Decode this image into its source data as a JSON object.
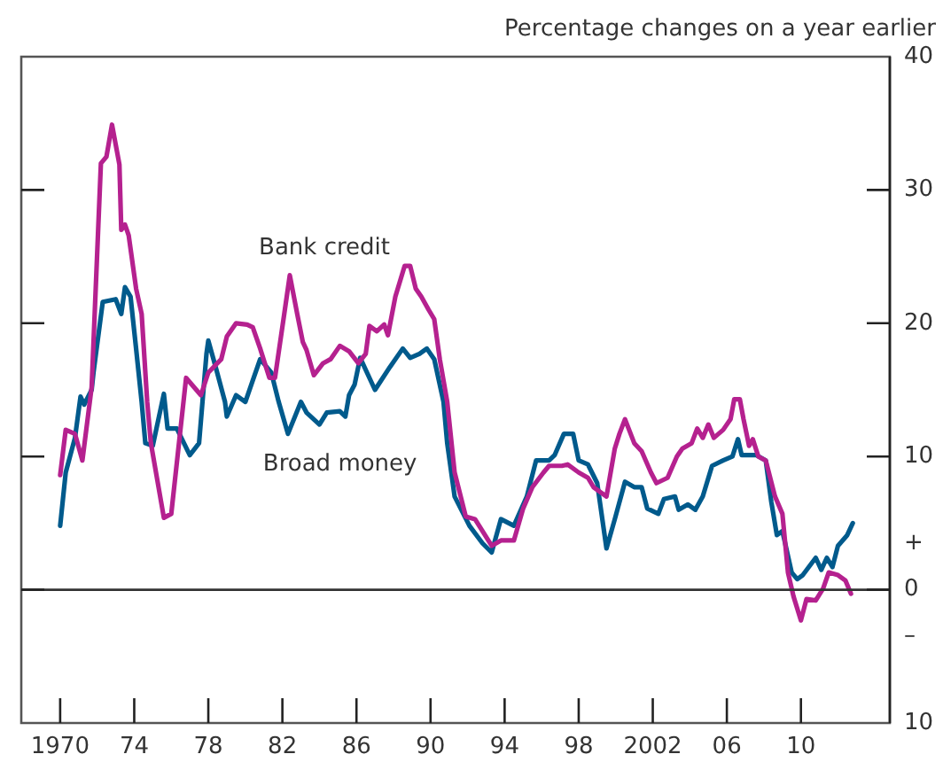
{
  "chart_data": {
    "type": "line",
    "ylabel": "Percentage changes on a year earlier",
    "xlim": [
      1967.9,
      2014.8
    ],
    "ylim": [
      -10,
      40
    ],
    "xticks": [
      {
        "value": 1970,
        "label": "1970"
      },
      {
        "value": 1974,
        "label": "74"
      },
      {
        "value": 1978,
        "label": "78"
      },
      {
        "value": 1982,
        "label": "82"
      },
      {
        "value": 1986,
        "label": "86"
      },
      {
        "value": 1990,
        "label": "90"
      },
      {
        "value": 1994,
        "label": "94"
      },
      {
        "value": 1998,
        "label": "98"
      },
      {
        "value": 2002,
        "label": "2002"
      },
      {
        "value": 2006,
        "label": "06"
      },
      {
        "value": 2010,
        "label": "10"
      }
    ],
    "yticks": [
      40,
      30,
      20,
      10,
      {
        "value": 3.5,
        "label": "+"
      },
      0,
      {
        "value": -3.5,
        "label": "–"
      },
      {
        "value": -10,
        "label": "10"
      }
    ],
    "ref_lines": [
      {
        "axis": "y",
        "value": 0,
        "color": "#333333"
      }
    ],
    "grid": false,
    "legend": false,
    "marker": "none",
    "line_style": "solid",
    "series": [
      {
        "name": "Bank credit",
        "color": "#b5218f",
        "x": [
          1970.0,
          1970.3,
          1970.8,
          1971.2,
          1971.7,
          1972.2,
          1972.5,
          1972.8,
          1973.2,
          1973.3,
          1973.5,
          1973.7,
          1974.1,
          1974.4,
          1974.7,
          1974.9,
          1975.6,
          1976.0,
          1976.8,
          1977.6,
          1978.0,
          1978.7,
          1979.0,
          1979.5,
          1980.1,
          1980.4,
          1980.8,
          1981.3,
          1981.6,
          1982.1,
          1982.4,
          1982.8,
          1983.1,
          1983.3,
          1983.7,
          1984.2,
          1984.6,
          1985.1,
          1985.6,
          1986.1,
          1986.5,
          1986.7,
          1987.1,
          1987.5,
          1987.7,
          1988.1,
          1988.6,
          1988.9,
          1989.2,
          1989.5,
          1989.9,
          1990.2,
          1990.5,
          1990.9,
          1991.3,
          1991.9,
          1992.4,
          1993.3,
          1993.8,
          1994.5,
          1995.0,
          1995.5,
          1996.1,
          1996.4,
          1997.1,
          1997.4,
          1998.0,
          1998.5,
          1998.8,
          1999.5,
          1999.95,
          2000.2,
          2000.5,
          2001.0,
          2001.4,
          2001.9,
          2002.2,
          2002.8,
          2003.3,
          2003.6,
          2004.1,
          2004.4,
          2004.7,
          2005.0,
          2005.3,
          2005.8,
          2006.2,
          2006.4,
          2006.7,
          2006.9,
          2007.2,
          2007.4,
          2007.7,
          2008.1,
          2008.6,
          2009.0,
          2009.3,
          2009.6,
          2010.0,
          2010.3,
          2010.8,
          2011.2,
          2011.5,
          2012.0,
          2012.4,
          2012.7
        ],
        "values": [
          8.6,
          12,
          11.7,
          9.7,
          15.2,
          32,
          32.5,
          34.9,
          31.9,
          27,
          27.4,
          26.6,
          22.6,
          20.7,
          14.1,
          11,
          5.4,
          5.7,
          15.9,
          14.6,
          16.3,
          17.3,
          19,
          20,
          19.9,
          19.7,
          18.1,
          15.9,
          15.9,
          20.7,
          23.6,
          20.7,
          18.6,
          18,
          16.1,
          17,
          17.3,
          18.3,
          17.9,
          17,
          17.7,
          19.8,
          19.4,
          19.9,
          19.1,
          22,
          24.3,
          24.3,
          22.6,
          22,
          21,
          20.3,
          17.3,
          14.1,
          8.8,
          5.5,
          5.3,
          3.3,
          3.7,
          3.7,
          6.1,
          7.7,
          8.8,
          9.3,
          9.3,
          9.4,
          8.8,
          8.4,
          7.7,
          7,
          10.6,
          11.7,
          12.8,
          11,
          10.4,
          8.8,
          8,
          8.4,
          10,
          10.6,
          11,
          12.1,
          11.4,
          12.4,
          11.4,
          12,
          12.8,
          14.3,
          14.3,
          12.8,
          10.8,
          11.3,
          10,
          9.7,
          7,
          5.7,
          1.3,
          -0.5,
          -2.3,
          -0.7,
          -0.8,
          0.1,
          1.3,
          1.1,
          0.7,
          -0.3
        ]
      },
      {
        "name": "Broad money",
        "color": "#005a8c",
        "x": [
          1970.0,
          1970.3,
          1970.8,
          1971.1,
          1971.3,
          1971.7,
          1971.8,
          1972.3,
          1973.0,
          1973.3,
          1973.5,
          1973.8,
          1974.1,
          1974.4,
          1974.6,
          1975.0,
          1975.6,
          1975.8,
          1976.3,
          1977.0,
          1977.5,
          1977.9,
          1978.0,
          1978.4,
          1978.9,
          1979.0,
          1979.5,
          1980.0,
          1980.4,
          1980.8,
          1981.4,
          1981.8,
          1982.3,
          1983.0,
          1983.3,
          1984.0,
          1984.4,
          1985.1,
          1985.4,
          1985.6,
          1985.9,
          1986.2,
          1987.0,
          1987.8,
          1988.5,
          1988.9,
          1989.4,
          1989.8,
          1990.2,
          1990.7,
          1990.9,
          1991.3,
          1992.1,
          1992.8,
          1993.3,
          1993.8,
          1994.5,
          1995.2,
          1995.7,
          1996.4,
          1996.7,
          1997.2,
          1997.7,
          1998.0,
          1998.5,
          1999.0,
          1999.5,
          1999.95,
          2000.5,
          2001.0,
          2001.4,
          2001.7,
          2002.3,
          2002.6,
          2003.2,
          2003.4,
          2003.9,
          2004.3,
          2004.7,
          2005.2,
          2005.8,
          2006.3,
          2006.6,
          2006.8,
          2007.6,
          2008.1,
          2008.4,
          2008.7,
          2009.0,
          2009.5,
          2009.8,
          2010.1,
          2010.8,
          2011.1,
          2011.4,
          2011.7,
          2012.0,
          2012.5,
          2012.8
        ],
        "values": [
          4.8,
          8.8,
          11.4,
          14.5,
          13.9,
          15,
          16.3,
          21.6,
          21.8,
          20.7,
          22.7,
          22,
          18.1,
          14.1,
          11,
          10.8,
          14.7,
          12.1,
          12.1,
          10.1,
          11,
          17.7,
          18.7,
          16.7,
          14.1,
          13,
          14.6,
          14.1,
          15.7,
          17.3,
          16.3,
          14.1,
          11.7,
          14.1,
          13.3,
          12.4,
          13.3,
          13.4,
          13,
          14.6,
          15.4,
          17.4,
          15,
          16.7,
          18.1,
          17.4,
          17.7,
          18.1,
          17.3,
          14.1,
          11,
          7,
          4.8,
          3.5,
          2.8,
          5.3,
          4.8,
          7,
          9.7,
          9.7,
          10.1,
          11.7,
          11.7,
          9.7,
          9.4,
          8,
          3.1,
          5.3,
          8.1,
          7.7,
          7.7,
          6.1,
          5.7,
          6.8,
          7,
          6,
          6.4,
          6,
          7,
          9.3,
          9.7,
          10,
          11.3,
          10.1,
          10.1,
          9.7,
          6.6,
          4.1,
          4.4,
          1.3,
          0.8,
          1.1,
          2.4,
          1.5,
          2.4,
          1.7,
          3.3,
          4.1,
          5
        ]
      }
    ]
  }
}
